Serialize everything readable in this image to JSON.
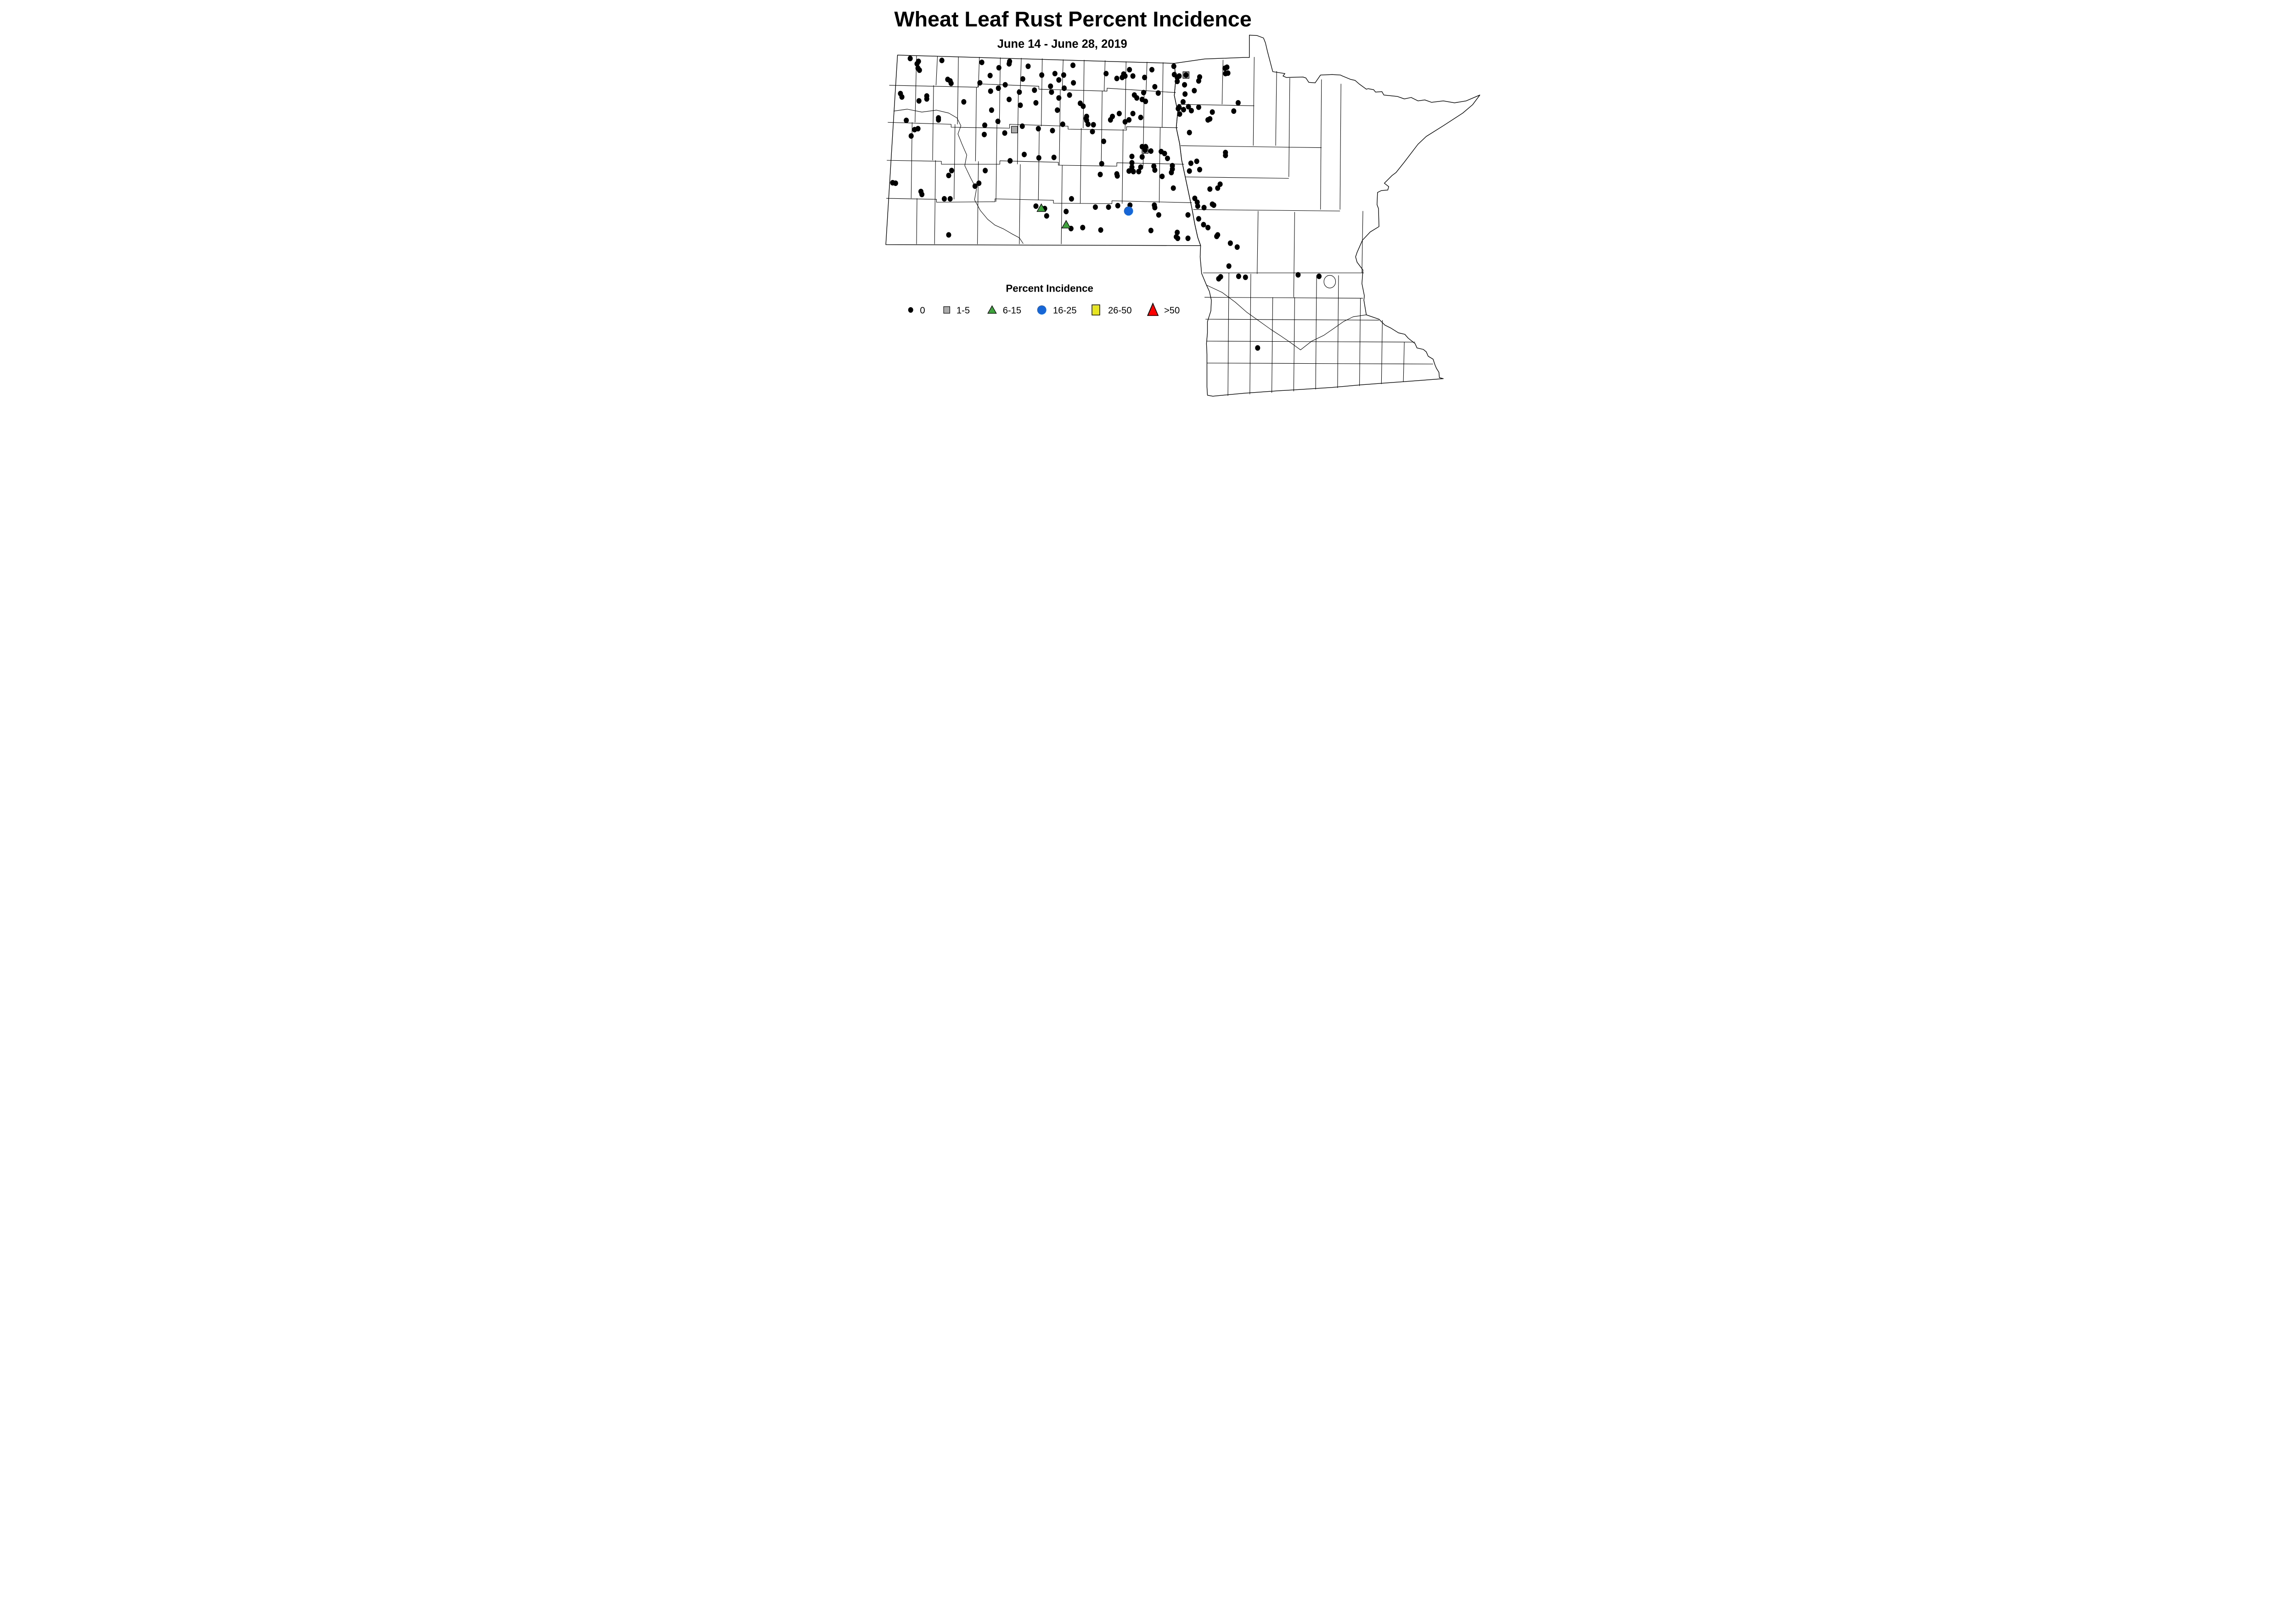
{
  "title": "Wheat Leaf Rust Percent Incidence",
  "subtitle": "June 14 - June 28, 2019",
  "legend": {
    "title": "Percent Incidence"
  },
  "colors": {
    "zero": "#000000",
    "low": "#ABABAB",
    "mid": "#3DA33B",
    "high": "#1766D8",
    "higher": "#E7E520",
    "highest": "#FF0000",
    "outline": "#000000",
    "background": "#FFFFFF"
  },
  "map_data": {
    "type": "point-incidence-map",
    "region": "North Dakota and Minnesota counties",
    "classes": [
      {
        "label": "0",
        "shape": "dot",
        "color": "#000000",
        "points": [
          [
            296,
            120
          ],
          [
            313,
            126
          ],
          [
            310,
            131
          ],
          [
            312,
            140
          ],
          [
            315,
            144
          ],
          [
            361,
            124
          ],
          [
            443,
            128
          ],
          [
            500,
            126
          ],
          [
            499,
            131
          ],
          [
            538,
            136
          ],
          [
            478,
            139
          ],
          [
            460,
            155
          ],
          [
            566,
            154
          ],
          [
            593,
            151
          ],
          [
            527,
            162
          ],
          [
            373,
            163
          ],
          [
            378,
            166
          ],
          [
            380,
            171
          ],
          [
            439,
            170
          ],
          [
            491,
            174
          ],
          [
            477,
            181
          ],
          [
            584,
            177
          ],
          [
            461,
            187
          ],
          [
            520,
            189
          ],
          [
            551,
            185
          ],
          [
            586,
            189
          ],
          [
            276,
            192
          ],
          [
            279,
            199
          ],
          [
            330,
            197
          ],
          [
            330,
            203
          ],
          [
            314,
            207
          ],
          [
            406,
            209
          ],
          [
            499,
            204
          ],
          [
            554,
            211
          ],
          [
            522,
            216
          ],
          [
            598,
            226
          ],
          [
            463,
            226
          ],
          [
            354,
            242
          ],
          [
            354,
            246
          ],
          [
            288,
            247
          ],
          [
            476,
            249
          ],
          [
            449,
            257
          ],
          [
            305,
            266
          ],
          [
            312,
            264
          ],
          [
            526,
            259
          ],
          [
            559,
            264
          ],
          [
            588,
            268
          ],
          [
            298,
            279
          ],
          [
            448,
            276
          ],
          [
            490,
            273
          ],
          [
            630,
            134
          ],
          [
            611,
            154
          ],
          [
            601,
            164
          ],
          [
            631,
            170
          ],
          [
            612,
            181
          ],
          [
            746,
            143
          ],
          [
            698,
            151
          ],
          [
            734,
            152
          ],
          [
            737,
            156
          ],
          [
            731,
            159
          ],
          [
            720,
            161
          ],
          [
            753,
            156
          ],
          [
            792,
            143
          ],
          [
            777,
            159
          ],
          [
            798,
            178
          ],
          [
            837,
            136
          ],
          [
            838,
            153
          ],
          [
            848,
            156
          ],
          [
            844,
            159
          ],
          [
            844,
            167
          ],
          [
            859,
            174
          ],
          [
            890,
            158
          ],
          [
            888,
            166
          ],
          [
            946,
            138
          ],
          [
            948,
            150
          ],
          [
            623,
            195
          ],
          [
            601,
            201
          ],
          [
            775,
            190
          ],
          [
            756,
            195
          ],
          [
            761,
            201
          ],
          [
            772,
            204
          ],
          [
            779,
            208
          ],
          [
            805,
            191
          ],
          [
            879,
            186
          ],
          [
            860,
            193
          ],
          [
            645,
            212
          ],
          [
            651,
            218
          ],
          [
            856,
            209
          ],
          [
            848,
            220
          ],
          [
            846,
            223
          ],
          [
            857,
            225
          ],
          [
            867,
            219
          ],
          [
            873,
            227
          ],
          [
            888,
            220
          ],
          [
            916,
            230
          ],
          [
            849,
            234
          ],
          [
            725,
            233
          ],
          [
            753,
            233
          ],
          [
            711,
            239
          ],
          [
            707,
            246
          ],
          [
            658,
            239
          ],
          [
            657,
            243
          ],
          [
            658,
            247
          ],
          [
            769,
            241
          ],
          [
            745,
            246
          ],
          [
            737,
            250
          ],
          [
            609,
            255
          ],
          [
            661,
            255
          ],
          [
            672,
            256
          ],
          [
            911,
            244
          ],
          [
            670,
            270
          ],
          [
            869,
            272
          ],
          [
            693,
            290
          ],
          [
            772,
            301
          ],
          [
            779,
            301
          ],
          [
            790,
            310
          ],
          [
            811,
            311
          ],
          [
            530,
            317
          ],
          [
            560,
            324
          ],
          [
            591,
            323
          ],
          [
            501,
            330
          ],
          [
            381,
            350
          ],
          [
            375,
            360
          ],
          [
            450,
            350
          ],
          [
            260,
            375
          ],
          [
            266,
            376
          ],
          [
            437,
            376
          ],
          [
            429,
            382
          ],
          [
            318,
            393
          ],
          [
            320,
            399
          ],
          [
            366,
            408
          ],
          [
            378,
            408
          ],
          [
            375,
            482
          ],
          [
            554,
            423
          ],
          [
            572,
            428
          ],
          [
            576,
            443
          ],
          [
            751,
            321
          ],
          [
            772,
            322
          ],
          [
            751,
            334
          ],
          [
            751,
            343
          ],
          [
            745,
            351
          ],
          [
            754,
            352
          ],
          [
            765,
            352
          ],
          [
            769,
            343
          ],
          [
            796,
            341
          ],
          [
            798,
            349
          ],
          [
            689,
            336
          ],
          [
            686,
            358
          ],
          [
            720,
            357
          ],
          [
            721,
            361
          ],
          [
            818,
            315
          ],
          [
            824,
            325
          ],
          [
            834,
            340
          ],
          [
            834,
            347
          ],
          [
            832,
            354
          ],
          [
            813,
            362
          ],
          [
            872,
            335
          ],
          [
            884,
            331
          ],
          [
            890,
            348
          ],
          [
            869,
            351
          ],
          [
            836,
            386
          ],
          [
            880,
            407
          ],
          [
            885,
            415
          ],
          [
            911,
            388
          ],
          [
            932,
            378
          ],
          [
            627,
            408
          ],
          [
            676,
            425
          ],
          [
            703,
            425
          ],
          [
            722,
            422
          ],
          [
            747,
            421
          ],
          [
            797,
            421
          ],
          [
            798,
            426
          ],
          [
            616,
            434
          ],
          [
            806,
            441
          ],
          [
            866,
            441
          ],
          [
            888,
            449
          ],
          [
            886,
            423
          ],
          [
            899,
            426
          ],
          [
            919,
            421
          ],
          [
            898,
            461
          ],
          [
            907,
            467
          ],
          [
            626,
            469
          ],
          [
            650,
            467
          ],
          [
            687,
            472
          ],
          [
            790,
            473
          ],
          [
            844,
            477
          ],
          [
            842,
            486
          ],
          [
            845,
            489
          ],
          [
            866,
            489
          ],
          [
            927,
            482
          ],
          [
            942,
            140
          ],
          [
            943,
            151
          ],
          [
            969,
            211
          ],
          [
            960,
            228
          ],
          [
            907,
            246
          ],
          [
            943,
            313
          ],
          [
            943,
            319
          ],
          [
            927,
            386
          ],
          [
            916,
            419
          ],
          [
            925,
            485
          ],
          [
            953,
            499
          ],
          [
            967,
            507
          ],
          [
            950,
            546
          ],
          [
            933,
            568
          ],
          [
            929,
            572
          ],
          [
            970,
            567
          ],
          [
            984,
            569
          ],
          [
            1092,
            564
          ],
          [
            1135,
            567
          ],
          [
            1009,
            714
          ],
          [
            862,
            154
          ],
          [
            778,
            308
          ]
        ]
      },
      {
        "label": "1-5",
        "shape": "square",
        "color": "#ABABAB",
        "points": [
          [
            510,
            266
          ],
          [
            862,
            154
          ],
          [
            778,
            308
          ]
        ]
      },
      {
        "label": "6-15",
        "shape": "triangle",
        "color": "#3DA33B",
        "points": [
          [
            565,
            427
          ],
          [
            616,
            461
          ]
        ]
      },
      {
        "label": "16-25",
        "shape": "circle",
        "color": "#1766D8",
        "points": [
          [
            744,
            433
          ]
        ]
      },
      {
        "label": "26-50",
        "shape": "square-large",
        "color": "#E7E520",
        "points": []
      },
      {
        "label": ">50",
        "shape": "triangle-large",
        "color": "#FF0000",
        "points": []
      }
    ]
  }
}
